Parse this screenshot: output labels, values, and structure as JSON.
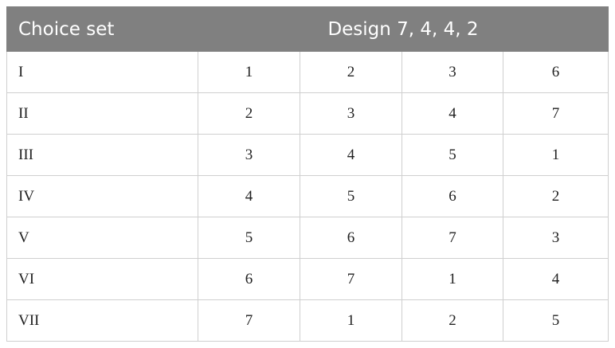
{
  "table": {
    "header": [
      "Choice set",
      "Design 7, 4, 4, 2"
    ],
    "rows": [
      {
        "label": "I",
        "values": [
          1,
          2,
          3,
          6
        ]
      },
      {
        "label": "II",
        "values": [
          2,
          3,
          4,
          7
        ]
      },
      {
        "label": "III",
        "values": [
          3,
          4,
          5,
          1
        ]
      },
      {
        "label": "IV",
        "values": [
          4,
          5,
          6,
          2
        ]
      },
      {
        "label": "V",
        "values": [
          5,
          6,
          7,
          3
        ]
      },
      {
        "label": "VI",
        "values": [
          6,
          7,
          1,
          4
        ]
      },
      {
        "label": "VII",
        "values": [
          7,
          1,
          2,
          5
        ]
      }
    ]
  }
}
